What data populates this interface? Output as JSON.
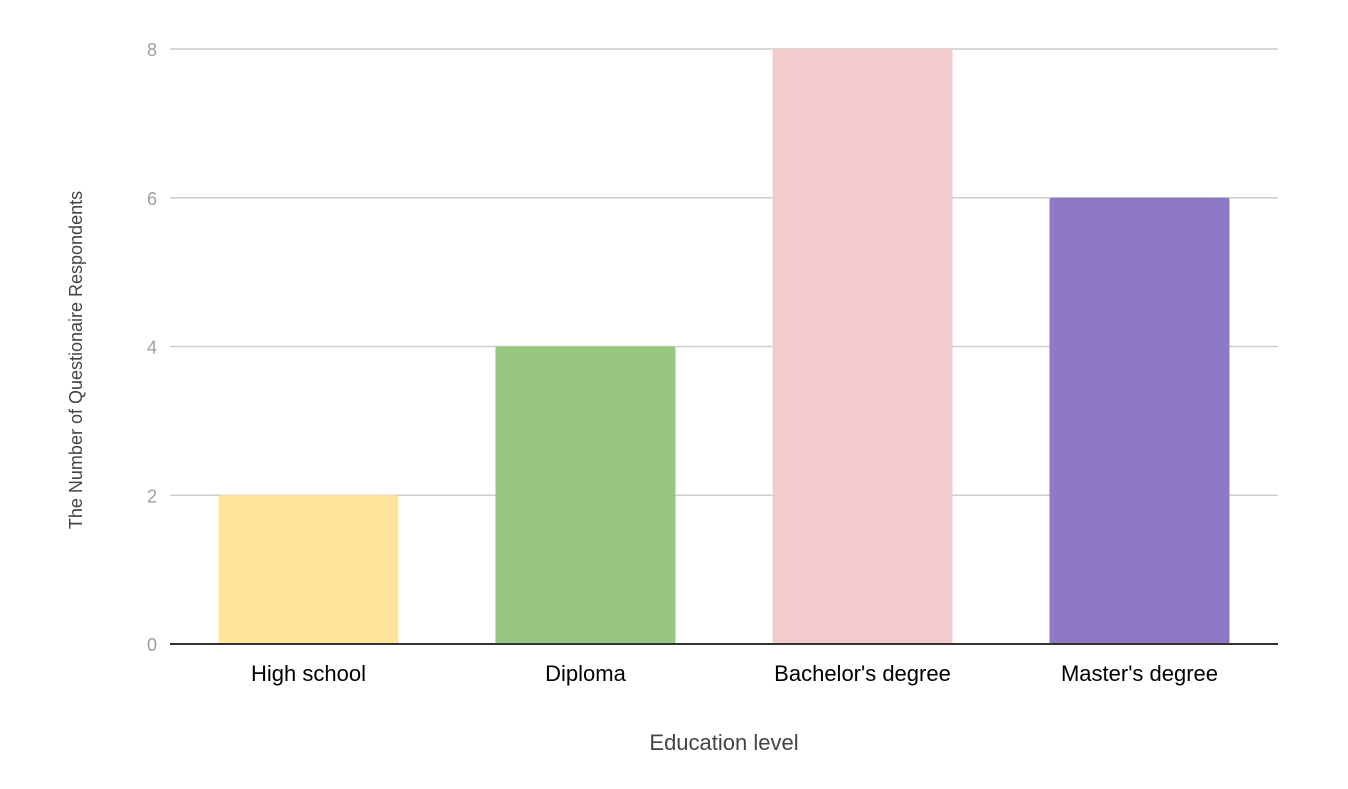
{
  "chart_data": {
    "type": "bar",
    "categories": [
      "High school",
      "Diploma",
      "Bachelor's degree",
      "Master's degree"
    ],
    "values": [
      2,
      4,
      8,
      6
    ],
    "bar_colors": [
      "#fee599",
      "#97c67e",
      "#f2cbcc",
      "#8e79c4"
    ],
    "xlabel": "Education level",
    "ylabel": "The Number of Questionaire Respondents",
    "ylim": [
      0,
      8
    ],
    "yticks": [
      0,
      2,
      4,
      6,
      8
    ],
    "grid": true,
    "colors": {
      "grid": "#cccccc",
      "axis": "#333333",
      "tick_label": "#9e9e9e",
      "category_label": "#000000",
      "axis_title": "#444444"
    }
  }
}
